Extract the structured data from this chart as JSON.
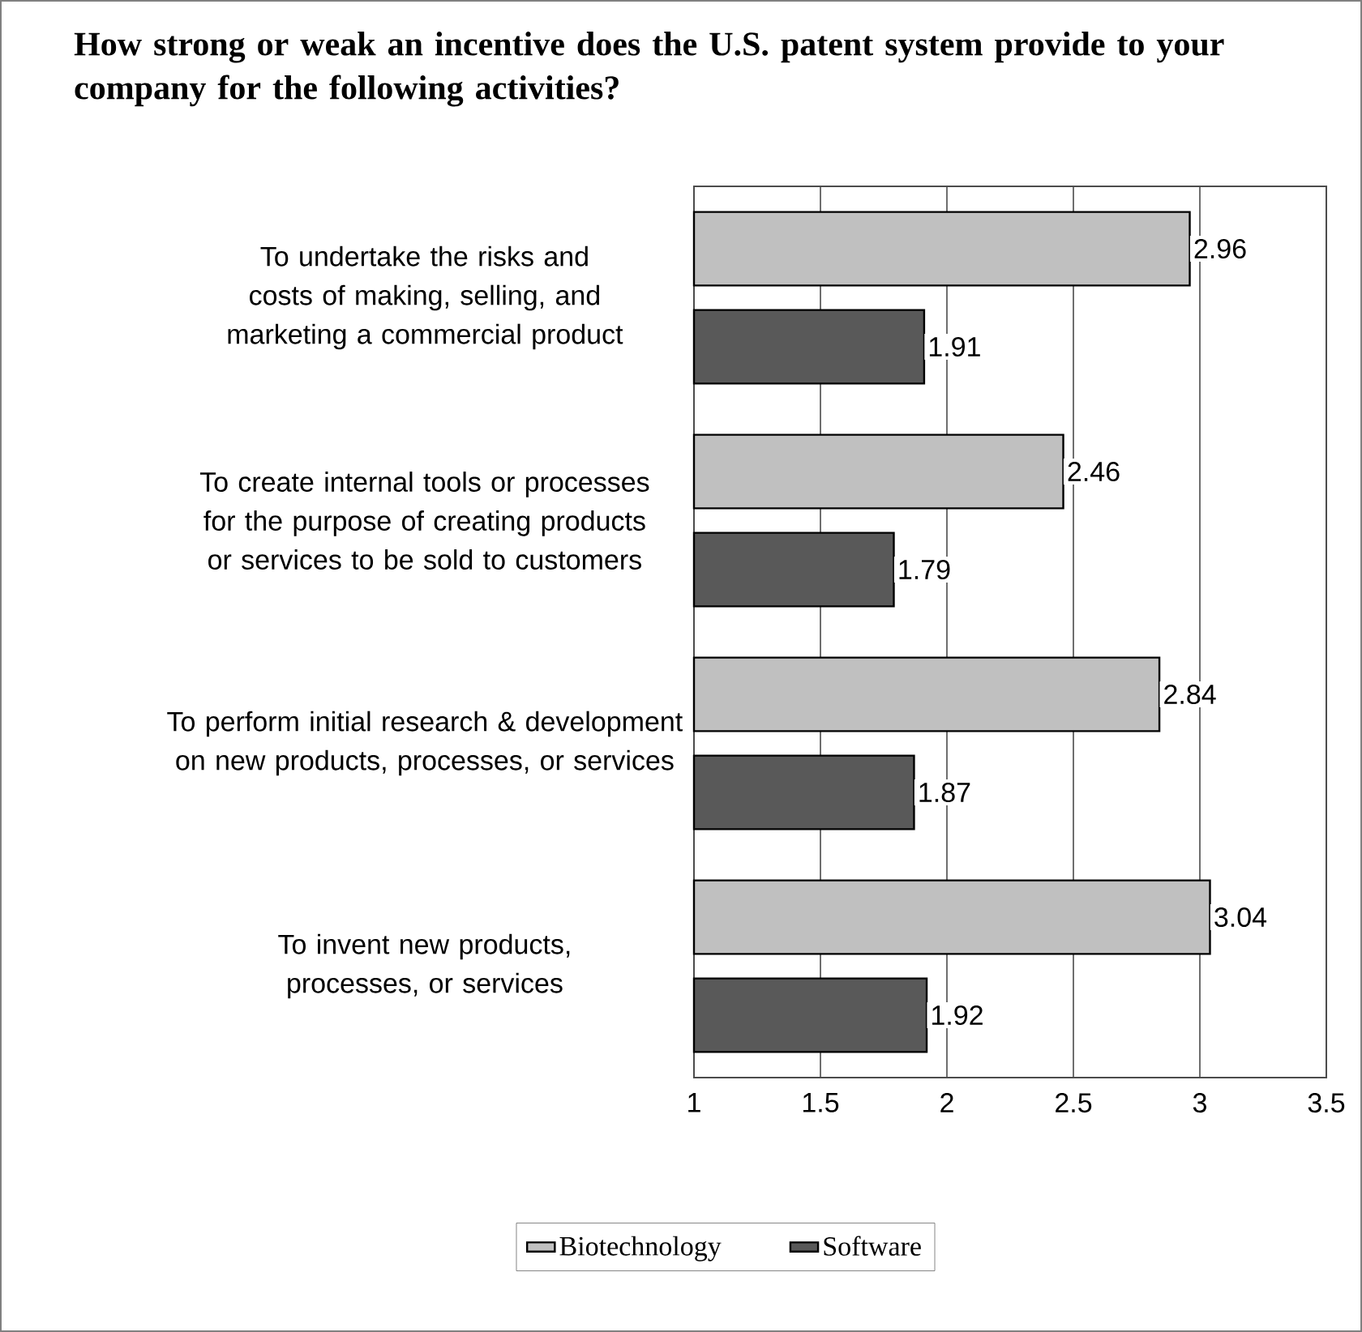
{
  "chart_data": {
    "type": "bar",
    "orientation": "horizontal",
    "title": "How strong or weak an incentive does the U.S. patent system provide to your company for the following activities?",
    "categories": [
      "To undertake the risks and costs of making, selling, and marketing a commercial product",
      "To create internal tools or processes for the purpose of creating products or services to be sold to customers",
      "To perform initial research & development on new products, processes, or services",
      "To invent new products, processes, or services"
    ],
    "series": [
      {
        "name": "Biotechnology",
        "color": "#c0c0c0",
        "values": [
          2.96,
          2.46,
          2.84,
          3.04
        ]
      },
      {
        "name": "Software",
        "color": "#595959",
        "values": [
          1.91,
          1.79,
          1.87,
          1.92
        ]
      }
    ],
    "xlim": [
      1,
      3.5
    ],
    "xticks": [
      1,
      1.5,
      2,
      2.5,
      3,
      3.5
    ],
    "grid": "x",
    "legend": "bottom",
    "data_labels": true
  }
}
